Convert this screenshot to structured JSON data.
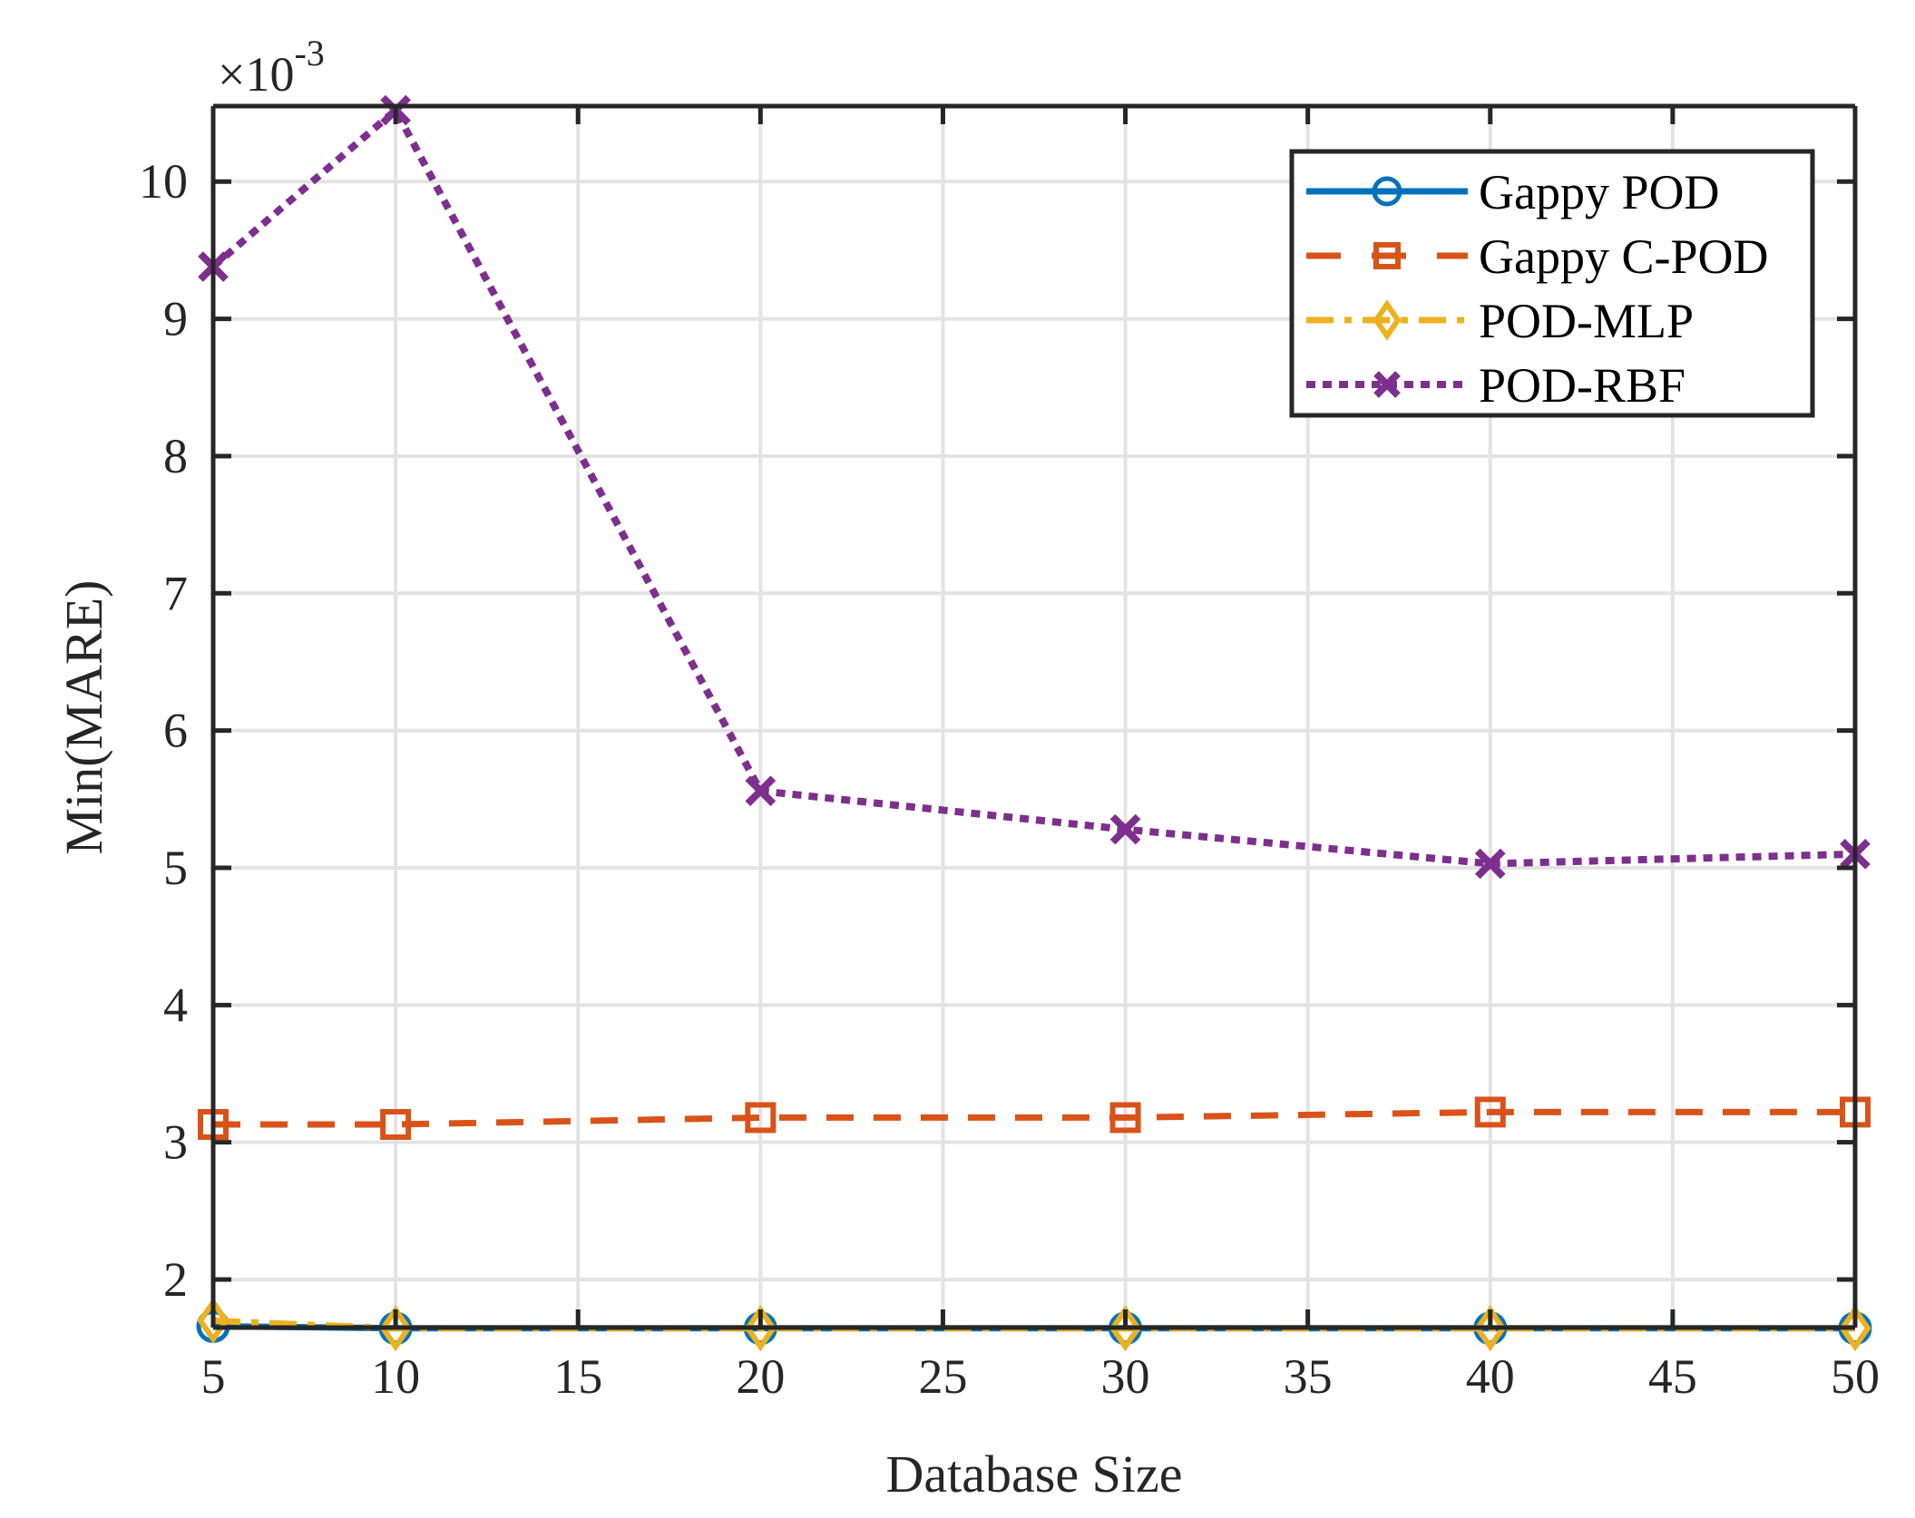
{
  "chart_data": {
    "type": "line",
    "title": "",
    "xlabel": "Database Size",
    "ylabel": "Min(MARE)",
    "y_multiplier_label": "×10",
    "y_multiplier_exponent": "-3",
    "x": [
      5,
      10,
      20,
      30,
      40,
      50
    ],
    "xlim": [
      5,
      50
    ],
    "ylim": [
      1.65,
      10.55
    ],
    "xticks": [
      5,
      10,
      15,
      20,
      25,
      30,
      35,
      40,
      45,
      50
    ],
    "yticks": [
      2,
      3,
      4,
      5,
      6,
      7,
      8,
      9,
      10
    ],
    "grid": true,
    "legend_position": "upper right",
    "series": [
      {
        "name": "Gappy POD",
        "values": [
          1.66,
          1.645,
          1.645,
          1.645,
          1.645,
          1.645
        ],
        "color": "#0072BD",
        "line": "solid",
        "marker": "circle"
      },
      {
        "name": "Gappy C-POD",
        "values": [
          3.13,
          3.13,
          3.18,
          3.18,
          3.22,
          3.22
        ],
        "color": "#D95319",
        "line": "dashed",
        "marker": "square"
      },
      {
        "name": "POD-MLP",
        "values": [
          1.7,
          1.645,
          1.645,
          1.645,
          1.645,
          1.645
        ],
        "color": "#EDB120",
        "line": "dashdot",
        "marker": "diamond"
      },
      {
        "name": "POD-RBF",
        "values": [
          9.38,
          10.52,
          5.56,
          5.28,
          5.03,
          5.1
        ],
        "color": "#7E2F8E",
        "line": "dotted",
        "marker": "x"
      }
    ]
  },
  "legend": {
    "items": [
      "Gappy POD",
      "Gappy C-POD",
      "POD-MLP",
      "POD-RBF"
    ]
  },
  "axes": {
    "x_label": "Database Size",
    "y_label": "Min(MARE)",
    "y_exp_base": "×10",
    "y_exp_power": "-3"
  }
}
